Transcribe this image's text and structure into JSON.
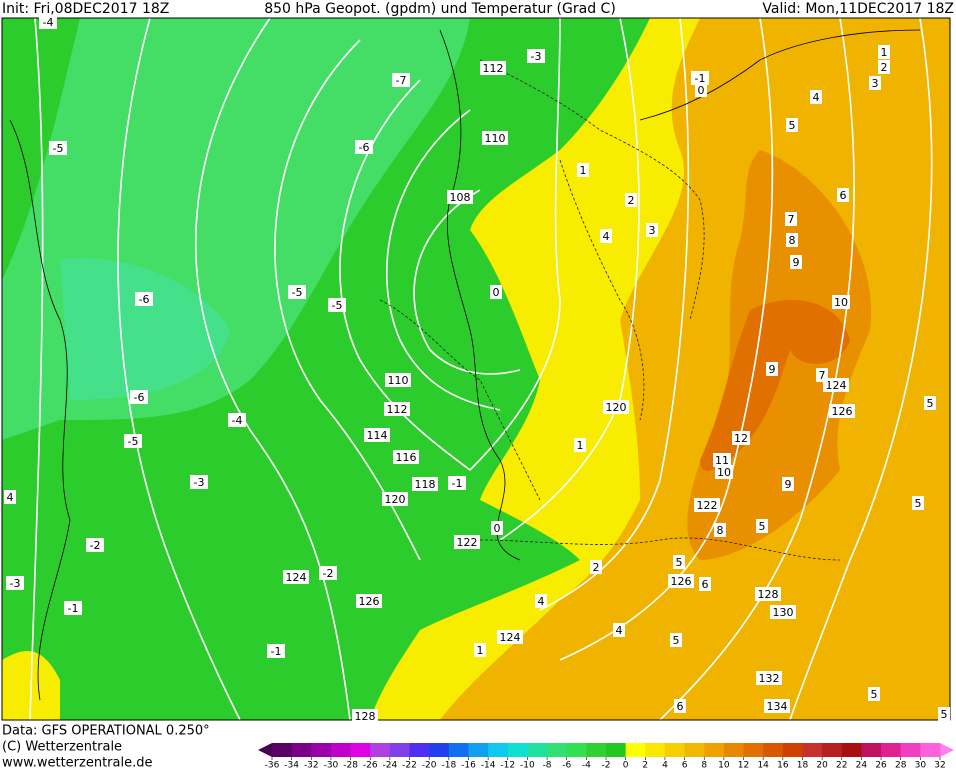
{
  "header": {
    "init": "Init: Fri,08DEC2017 18Z",
    "title": "850 hPa Geopot. (gpdm) und Temperatur (Grad C)",
    "valid": "Valid: Mon,11DEC2017 18Z"
  },
  "footer": {
    "data": "Data: GFS OPERATIONAL 0.250°",
    "copyright": "(C) Wetterzentrale",
    "url": "www.wetterzentrale.de"
  },
  "colorbar": {
    "ticks": [
      -36,
      -34,
      -32,
      -30,
      -28,
      -26,
      -24,
      -22,
      -20,
      -18,
      -16,
      -14,
      -12,
      -10,
      -8,
      -6,
      -4,
      -2,
      0,
      2,
      4,
      6,
      8,
      10,
      12,
      14,
      16,
      18,
      20,
      22,
      24,
      26,
      28,
      30,
      32
    ],
    "colors": [
      "#5a0064",
      "#7a0088",
      "#9a00aa",
      "#c000c8",
      "#e000e8",
      "#b040e0",
      "#8040e8",
      "#5030f0",
      "#2040f0",
      "#1070f0",
      "#10a0f0",
      "#10c8f0",
      "#10e0d0",
      "#20e0a0",
      "#30e070",
      "#30e050",
      "#30d030",
      "#20c820",
      "#ffff00",
      "#f8e800",
      "#f5d000",
      "#f0b800",
      "#f0a000",
      "#e88800",
      "#e07000",
      "#d85800",
      "#d04000",
      "#c83030",
      "#b82020",
      "#a81010",
      "#c01060",
      "#e02090",
      "#f040c0",
      "#ff60e0"
    ],
    "low_color": "#4a0050",
    "high_color": "#ff80f0"
  },
  "geopotential_labels": [
    112,
    110,
    108,
    110,
    112,
    114,
    116,
    118,
    120,
    122,
    124,
    126,
    124,
    128,
    120,
    122,
    124,
    126,
    126,
    128,
    130,
    132,
    134
  ],
  "temperature_labels": [
    -4,
    -3,
    -7,
    -1,
    0,
    -5,
    -6,
    -5,
    -5,
    -6,
    -6,
    -5,
    -4,
    -3,
    -2,
    -2,
    -1,
    -1,
    -3,
    4,
    -1,
    0,
    0,
    1,
    2,
    3,
    4,
    1,
    2,
    4,
    4,
    1,
    5,
    4,
    6,
    7,
    8,
    9,
    10,
    9,
    7,
    12,
    11,
    10,
    9,
    8,
    5,
    5,
    5,
    6,
    5,
    5,
    6,
    5,
    1,
    2,
    3,
    5
  ]
}
